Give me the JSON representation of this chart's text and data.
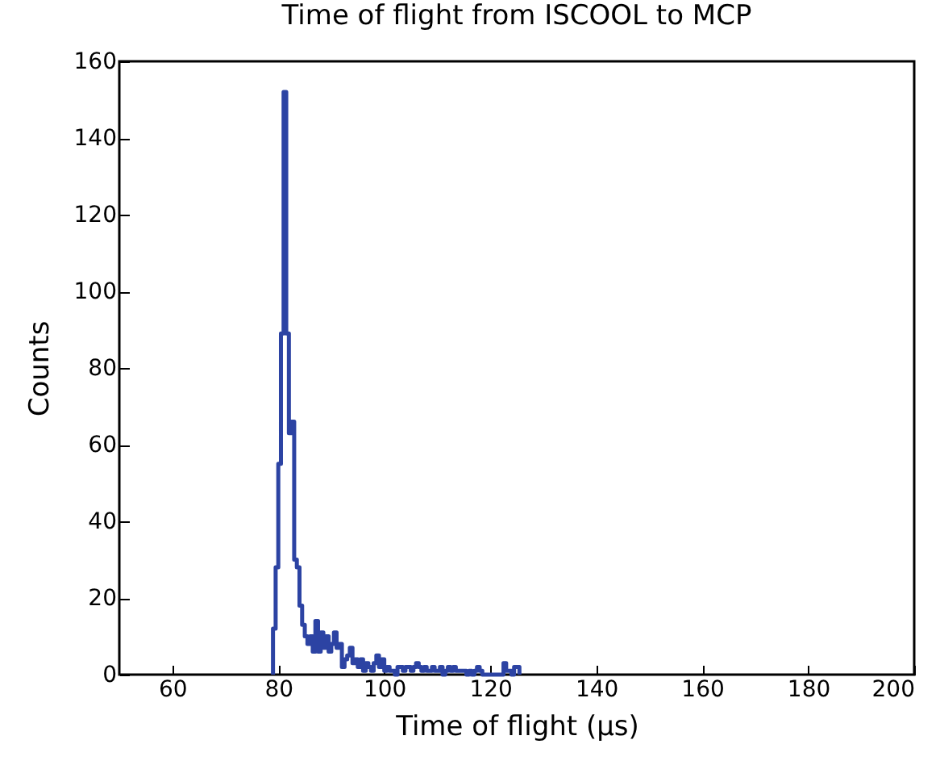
{
  "chart_data": {
    "type": "histogram",
    "title": "Time of flight from ISCOOL to MCP",
    "xlabel": "Time of flight (μs)",
    "ylabel": "Counts",
    "color": "#2c43a3",
    "bins": [
      79,
      79.5,
      80,
      80.5,
      81,
      81.5,
      82,
      82.5,
      83,
      83.5,
      84,
      84.5,
      85,
      85.5,
      86,
      86.5,
      87,
      87.5,
      88,
      88.5,
      89,
      89.5,
      90,
      90.5,
      91,
      91.5,
      92,
      92.5,
      93,
      93.5,
      94,
      94.5,
      95,
      95.5,
      96,
      96.5,
      97,
      97.5,
      98,
      98.5,
      99,
      99.5,
      100,
      100.5,
      101,
      101.5,
      102,
      102.5,
      103,
      103.5,
      104,
      104.5,
      105,
      105.5,
      106,
      106.5,
      107,
      107.5,
      108,
      108.5,
      109,
      109.5,
      110,
      110.5,
      111,
      111.5,
      112,
      112.5,
      113,
      113.5,
      114,
      114.5,
      115,
      115.5,
      116,
      116.5,
      117,
      117.5,
      118,
      118.5,
      119,
      119.5,
      120,
      120.5,
      121,
      121.5,
      122,
      122.5,
      123,
      123.5,
      124,
      124.5,
      125,
      125.5
    ],
    "values": [
      12,
      28,
      55,
      89,
      152,
      89,
      63,
      66,
      30,
      28,
      18,
      13,
      10,
      8,
      10,
      6,
      14,
      6,
      11,
      7,
      10,
      6,
      8,
      11,
      7,
      8,
      2,
      4,
      5,
      7,
      3,
      4,
      2,
      4,
      1,
      3,
      2,
      1,
      3,
      5,
      2,
      4,
      1,
      2,
      1,
      1,
      0,
      2,
      2,
      1,
      2,
      2,
      1,
      2,
      3,
      2,
      1,
      2,
      1,
      1,
      2,
      1,
      1,
      2,
      0,
      1,
      2,
      1,
      2,
      1,
      1,
      1,
      1,
      0,
      1,
      0,
      1,
      2,
      1,
      0,
      0,
      0,
      0,
      0,
      0,
      0,
      0,
      3,
      1,
      1,
      0,
      2,
      2
    ],
    "xlim": [
      50,
      200
    ],
    "xticks": [
      60,
      80,
      100,
      120,
      140,
      160,
      180,
      200
    ],
    "ylim": [
      0,
      160
    ],
    "yticks": [
      0,
      20,
      40,
      60,
      80,
      100,
      120,
      140,
      160
    ],
    "grid": false
  }
}
